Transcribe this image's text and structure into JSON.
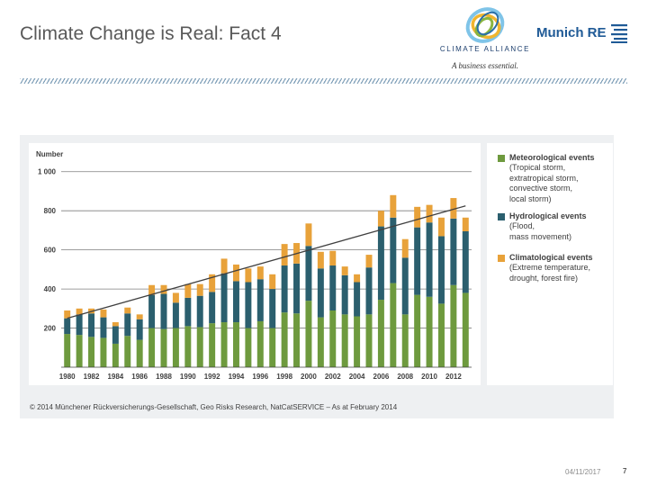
{
  "slide": {
    "title": "Climate Change is Real: Fact 4",
    "copyright": "© 2014 Münchener Rückversicherungs-Gesellschaft, Geo Risks Research, NatCatSERVICE – As at February 2014",
    "date": "04/11/2017",
    "page_number": "7"
  },
  "logos": {
    "climate_alliance": "CLIMATE ALLIANCE",
    "climate_alliance_tagline": "A business essential.",
    "munich_re": "Munich RE"
  },
  "legend": {
    "meteorological": {
      "title": "Meteorological events",
      "desc": [
        "(Tropical storm,",
        "extratropical storm,",
        "convective storm,",
        "local storm)"
      ]
    },
    "hydrological": {
      "title": "Hydrological events",
      "desc": [
        "(Flood,",
        "mass movement)"
      ]
    },
    "climatological": {
      "title": "Climatological events",
      "desc": [
        "(Extreme temperature,",
        "drought, forest fire)"
      ]
    }
  },
  "colors": {
    "meteorological": "#6e9a3e",
    "hydrological": "#2b5f6e",
    "climatological": "#e8a23a",
    "trend": "#404040",
    "grid": "#7f7f7f"
  },
  "chart_data": {
    "type": "bar",
    "stacked": true,
    "ylabel": "Number",
    "ylim": [
      0,
      1100
    ],
    "yticks": [
      200,
      400,
      600,
      800,
      1000
    ],
    "ytick_labels": [
      "200",
      "400",
      "600",
      "800",
      "1 000"
    ],
    "xtick_labels": [
      "1980",
      "1982",
      "1984",
      "1986",
      "1988",
      "1990",
      "1992",
      "1994",
      "1996",
      "1998",
      "2000",
      "2002",
      "2004",
      "2006",
      "2008",
      "2010",
      "2012"
    ],
    "categories": [
      1980,
      1981,
      1982,
      1983,
      1984,
      1985,
      1986,
      1987,
      1988,
      1989,
      1990,
      1991,
      1992,
      1993,
      1994,
      1995,
      1996,
      1997,
      1998,
      1999,
      2000,
      2001,
      2002,
      2003,
      2004,
      2005,
      2006,
      2007,
      2008,
      2009,
      2010,
      2011,
      2012,
      2013
    ],
    "series": [
      {
        "name": "Meteorological events",
        "values": [
          170,
          165,
          155,
          150,
          120,
          160,
          140,
          200,
          195,
          200,
          210,
          205,
          225,
          230,
          230,
          200,
          235,
          200,
          280,
          275,
          340,
          255,
          290,
          270,
          260,
          270,
          345,
          430,
          270,
          370,
          360,
          325,
          420,
          380
        ]
      },
      {
        "name": "Hydrological events",
        "values": [
          80,
          105,
          120,
          105,
          90,
          115,
          105,
          170,
          180,
          130,
          145,
          160,
          160,
          250,
          210,
          235,
          215,
          200,
          240,
          255,
          280,
          250,
          230,
          200,
          175,
          240,
          375,
          335,
          290,
          345,
          380,
          345,
          340,
          315
        ]
      },
      {
        "name": "Climatological events",
        "values": [
          40,
          30,
          25,
          40,
          20,
          30,
          25,
          50,
          45,
          50,
          70,
          60,
          90,
          75,
          85,
          70,
          65,
          75,
          110,
          105,
          115,
          85,
          75,
          45,
          40,
          65,
          80,
          115,
          95,
          105,
          90,
          95,
          105,
          70
        ]
      }
    ],
    "trend": {
      "name": "Trend",
      "x": [
        1980,
        2013
      ],
      "y": [
        250,
        825
      ]
    }
  }
}
